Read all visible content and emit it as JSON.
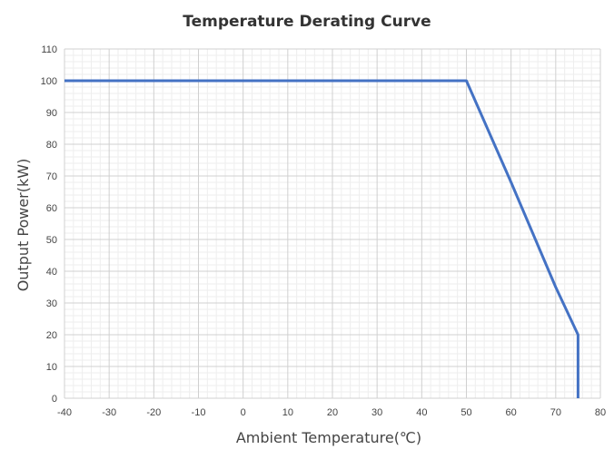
{
  "chart_data": {
    "type": "line",
    "title": "Temperature Derating Curve",
    "xlabel": "Ambient Temperature(℃)",
    "ylabel": "Output Power(kW)",
    "xlim": [
      -40,
      80
    ],
    "ylim": [
      0,
      110
    ],
    "x_ticks": [
      -40,
      -30,
      -20,
      -10,
      0,
      10,
      20,
      30,
      40,
      50,
      60,
      70,
      80
    ],
    "y_ticks": [
      0,
      10,
      20,
      30,
      40,
      50,
      60,
      70,
      80,
      90,
      100,
      110
    ],
    "grid": true,
    "minor_grid": true,
    "legend": "none",
    "series": [
      {
        "color": "#4472c4",
        "x": [
          -40,
          50,
          60,
          70,
          75,
          75
        ],
        "y": [
          100,
          100,
          68,
          35,
          20,
          0
        ]
      }
    ]
  }
}
